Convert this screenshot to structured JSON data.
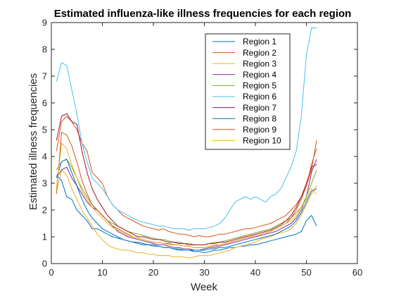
{
  "chart_data": {
    "type": "line",
    "title": "Estimated influenza-like illness frequencies for each region",
    "xlabel": "Week",
    "ylabel": "Estimated illness frequencies",
    "xlim": [
      0,
      60
    ],
    "ylim": [
      0,
      9
    ],
    "xticks": [
      "0",
      "10",
      "20",
      "30",
      "40",
      "50",
      "60"
    ],
    "yticks": [
      "0",
      "1",
      "2",
      "3",
      "4",
      "5",
      "6",
      "7",
      "8",
      "9"
    ],
    "grid": false,
    "legend_position": "top-right",
    "x": [
      1,
      2,
      3,
      4,
      5,
      6,
      7,
      8,
      9,
      10,
      11,
      12,
      13,
      14,
      15,
      16,
      17,
      18,
      19,
      20,
      21,
      22,
      23,
      24,
      25,
      26,
      27,
      28,
      29,
      30,
      31,
      32,
      33,
      34,
      35,
      36,
      37,
      38,
      39,
      40,
      41,
      42,
      43,
      44,
      45,
      46,
      47,
      48,
      49,
      50,
      51,
      52
    ],
    "series": [
      {
        "name": "Region 1",
        "color": "#0072BD",
        "values": [
          3.3,
          3.1,
          2.5,
          2.4,
          2.0,
          1.8,
          1.6,
          1.3,
          1.3,
          1.2,
          1.1,
          1.0,
          0.95,
          0.9,
          0.85,
          0.8,
          0.8,
          0.75,
          0.7,
          0.7,
          0.65,
          0.6,
          0.6,
          0.55,
          0.5,
          0.5,
          0.5,
          0.45,
          0.45,
          0.4,
          0.45,
          0.5,
          0.5,
          0.55,
          0.6,
          0.6,
          0.65,
          0.65,
          0.7,
          0.7,
          0.75,
          0.8,
          0.85,
          0.9,
          0.95,
          1.0,
          1.05,
          1.1,
          1.2,
          1.6,
          1.8,
          1.4
        ]
      },
      {
        "name": "Region 2",
        "color": "#D95319",
        "values": [
          4.2,
          5.3,
          5.5,
          5.3,
          5.0,
          4.5,
          4.2,
          3.4,
          3.2,
          3.0,
          2.5,
          2.2,
          2.0,
          1.8,
          1.7,
          1.6,
          1.5,
          1.4,
          1.35,
          1.3,
          1.25,
          1.3,
          1.2,
          1.15,
          1.1,
          1.1,
          1.05,
          1.0,
          1.05,
          1.0,
          1.0,
          1.05,
          1.1,
          1.1,
          1.15,
          1.2,
          1.25,
          1.3,
          1.3,
          1.35,
          1.4,
          1.45,
          1.5,
          1.6,
          1.7,
          1.8,
          2.0,
          2.2,
          2.5,
          2.9,
          3.5,
          4.6
        ]
      },
      {
        "name": "Region 3",
        "color": "#EDB120",
        "values": [
          2.7,
          3.5,
          3.3,
          2.8,
          2.4,
          2.0,
          1.7,
          1.4,
          1.1,
          0.9,
          0.7,
          0.6,
          0.55,
          0.5,
          0.5,
          0.45,
          0.4,
          0.4,
          0.35,
          0.35,
          0.3,
          0.3,
          0.3,
          0.25,
          0.25,
          0.25,
          0.2,
          0.25,
          0.3,
          0.3,
          0.3,
          0.35,
          0.4,
          0.45,
          0.5,
          0.6,
          0.65,
          0.7,
          0.75,
          0.8,
          0.9,
          0.95,
          1.0,
          1.1,
          1.15,
          1.2,
          1.3,
          1.5,
          1.8,
          2.2,
          2.6,
          2.9
        ]
      },
      {
        "name": "Region 4",
        "color": "#7E2F8E",
        "values": [
          3.2,
          3.5,
          3.6,
          3.2,
          2.9,
          2.6,
          2.3,
          2.1,
          2.0,
          1.8,
          1.6,
          1.4,
          1.2,
          1.1,
          1.0,
          0.95,
          0.9,
          0.85,
          0.8,
          0.75,
          0.7,
          0.7,
          0.65,
          0.6,
          0.6,
          0.55,
          0.55,
          0.5,
          0.5,
          0.55,
          0.6,
          0.6,
          0.65,
          0.7,
          0.75,
          0.8,
          0.85,
          0.9,
          0.95,
          1.0,
          1.05,
          1.1,
          1.15,
          1.2,
          1.3,
          1.4,
          1.5,
          1.7,
          2.0,
          2.5,
          3.4,
          3.9
        ]
      },
      {
        "name": "Region 5",
        "color": "#77AC30",
        "values": [
          3.5,
          3.8,
          3.9,
          3.6,
          3.2,
          2.8,
          2.5,
          2.2,
          2.0,
          1.8,
          1.6,
          1.5,
          1.4,
          1.3,
          1.2,
          1.15,
          1.1,
          1.05,
          1.0,
          0.95,
          0.9,
          0.9,
          0.85,
          0.8,
          0.8,
          0.75,
          0.75,
          0.7,
          0.7,
          0.7,
          0.75,
          0.8,
          0.8,
          0.85,
          0.9,
          0.95,
          1.0,
          1.05,
          1.1,
          1.15,
          1.2,
          1.25,
          1.3,
          1.4,
          1.5,
          1.6,
          1.7,
          1.9,
          2.1,
          2.5,
          3.0,
          3.5
        ]
      },
      {
        "name": "Region 6",
        "color": "#4DBEEE",
        "values": [
          6.8,
          7.5,
          7.4,
          6.5,
          5.6,
          4.5,
          3.8,
          3.2,
          3.0,
          2.8,
          2.5,
          2.2,
          2.0,
          1.9,
          1.8,
          1.7,
          1.6,
          1.55,
          1.5,
          1.45,
          1.4,
          1.4,
          1.35,
          1.3,
          1.3,
          1.3,
          1.25,
          1.3,
          1.3,
          1.3,
          1.35,
          1.4,
          1.5,
          1.7,
          2.0,
          2.3,
          2.4,
          2.5,
          2.4,
          2.5,
          2.4,
          2.3,
          2.5,
          2.6,
          2.8,
          3.2,
          3.6,
          4.2,
          5.5,
          7.8,
          8.8,
          8.8
        ]
      },
      {
        "name": "Region 7",
        "color": "#A2142F",
        "values": [
          4.6,
          5.5,
          5.6,
          5.3,
          5.2,
          4.2,
          3.4,
          2.8,
          2.4,
          2.1,
          1.8,
          1.6,
          1.4,
          1.3,
          1.2,
          1.1,
          1.0,
          1.0,
          0.95,
          0.9,
          0.9,
          0.85,
          0.8,
          0.8,
          0.75,
          0.75,
          0.7,
          0.7,
          0.7,
          0.7,
          0.75,
          0.75,
          0.8,
          0.8,
          0.85,
          0.9,
          0.95,
          1.0,
          1.05,
          1.1,
          1.15,
          1.2,
          1.25,
          1.35,
          1.45,
          1.6,
          1.8,
          2.1,
          2.5,
          3.0,
          3.6,
          3.7
        ]
      },
      {
        "name": "Region 8",
        "color": "#0072BD",
        "values": [
          3.2,
          3.8,
          3.9,
          3.4,
          2.9,
          2.4,
          2.0,
          1.7,
          1.5,
          1.3,
          1.2,
          1.1,
          1.0,
          0.9,
          0.85,
          0.8,
          0.75,
          0.7,
          0.7,
          0.65,
          0.65,
          0.6,
          0.6,
          0.55,
          0.55,
          0.5,
          0.5,
          0.5,
          0.5,
          0.5,
          0.55,
          0.55,
          0.6,
          0.6,
          0.65,
          0.7,
          0.75,
          0.8,
          0.85,
          0.9,
          0.95,
          1.0,
          1.05,
          1.1,
          1.2,
          1.3,
          1.4,
          1.6,
          1.9,
          2.3,
          2.7,
          2.8
        ]
      },
      {
        "name": "Region 9",
        "color": "#D95319",
        "values": [
          2.6,
          4.9,
          4.8,
          4.4,
          3.8,
          3.1,
          2.6,
          2.2,
          2.0,
          1.8,
          1.6,
          1.4,
          1.3,
          1.2,
          1.1,
          1.0,
          0.95,
          0.9,
          0.85,
          0.8,
          0.8,
          0.75,
          0.75,
          0.7,
          0.7,
          0.65,
          0.65,
          0.6,
          0.6,
          0.6,
          0.65,
          0.65,
          0.7,
          0.75,
          0.8,
          0.85,
          0.9,
          0.95,
          1.0,
          1.05,
          1.1,
          1.15,
          1.2,
          1.3,
          1.4,
          1.5,
          1.7,
          2.0,
          2.4,
          2.9,
          3.7,
          4.3
        ]
      },
      {
        "name": "Region 10",
        "color": "#EDB120",
        "values": [
          2.8,
          4.5,
          4.3,
          3.7,
          3.2,
          2.7,
          2.4,
          2.1,
          1.9,
          1.7,
          1.5,
          1.35,
          1.25,
          1.15,
          1.05,
          1.0,
          0.95,
          0.9,
          0.85,
          0.8,
          0.8,
          0.75,
          0.7,
          0.7,
          0.7,
          0.65,
          0.65,
          0.6,
          0.6,
          0.6,
          0.65,
          0.7,
          0.7,
          0.75,
          0.8,
          0.85,
          0.9,
          0.95,
          1.0,
          1.05,
          1.1,
          1.15,
          1.2,
          1.3,
          1.4,
          1.5,
          1.6,
          1.8,
          2.1,
          2.4,
          2.8,
          2.6
        ]
      }
    ]
  }
}
